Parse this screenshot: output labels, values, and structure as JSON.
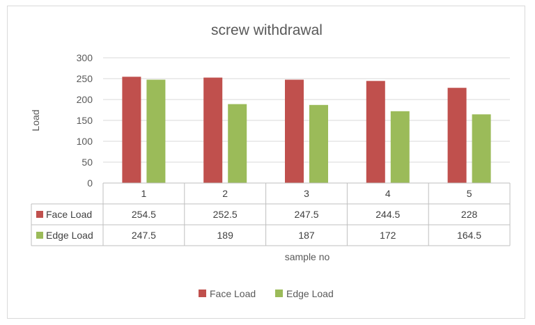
{
  "chart_data": {
    "type": "bar",
    "title": "screw withdrawal",
    "xlabel": "sample no",
    "ylabel": "Load",
    "categories": [
      "1",
      "2",
      "3",
      "4",
      "5"
    ],
    "series": [
      {
        "name": "Face Load",
        "values": [
          254.5,
          252.5,
          247.5,
          244.5,
          228
        ],
        "color": "#c0504d"
      },
      {
        "name": "Edge Load",
        "values": [
          247.5,
          189,
          187,
          172,
          164.5
        ],
        "color": "#9bbb59"
      }
    ],
    "yticks": [
      "0",
      "50",
      "100",
      "150",
      "200",
      "250",
      "300"
    ],
    "ylim": [
      0,
      300
    ],
    "grid": true,
    "data_table": true,
    "legend_position": "bottom"
  }
}
